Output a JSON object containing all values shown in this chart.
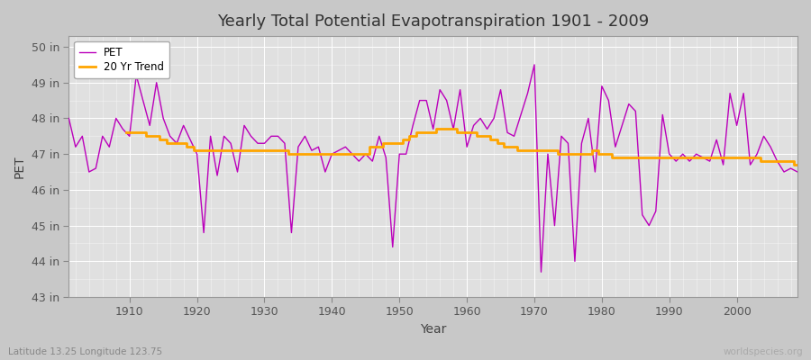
{
  "title": "Yearly Total Potential Evapotranspiration 1901 - 2009",
  "xlabel": "Year",
  "ylabel": "PET",
  "bottom_left_label": "Latitude 13.25 Longitude 123.75",
  "bottom_right_label": "worldspecies.org",
  "pet_color": "#bb00bb",
  "trend_color": "#ffa500",
  "fig_bg_color": "#c8c8c8",
  "plot_bg_color": "#e0e0e0",
  "ylim": [
    43,
    50.3
  ],
  "xlim": [
    1901,
    2009
  ],
  "yticks": [
    43,
    44,
    45,
    46,
    47,
    48,
    49,
    50
  ],
  "xticks": [
    1910,
    1920,
    1930,
    1940,
    1950,
    1960,
    1970,
    1980,
    1990,
    2000
  ],
  "pet_data": [
    48.0,
    47.2,
    47.5,
    46.5,
    46.6,
    47.5,
    47.2,
    48.0,
    47.7,
    47.5,
    49.2,
    48.5,
    47.8,
    49.0,
    48.0,
    47.5,
    47.3,
    47.8,
    47.4,
    47.0,
    44.8,
    47.5,
    46.4,
    47.5,
    47.3,
    46.5,
    47.8,
    47.5,
    47.3,
    47.3,
    47.5,
    47.5,
    47.3,
    44.8,
    47.2,
    47.5,
    47.1,
    47.2,
    46.5,
    47.0,
    47.1,
    47.2,
    47.0,
    46.8,
    47.0,
    46.8,
    47.5,
    46.9,
    44.4,
    47.0,
    47.0,
    47.8,
    48.5,
    48.5,
    47.7,
    48.8,
    48.5,
    47.7,
    48.8,
    47.2,
    47.8,
    48.0,
    47.7,
    48.0,
    48.8,
    47.6,
    47.5,
    48.1,
    48.7,
    49.5,
    43.7,
    47.0,
    45.0,
    47.5,
    47.3,
    44.0,
    47.3,
    48.0,
    46.5,
    48.9,
    48.5,
    47.2,
    47.8,
    48.4,
    48.2,
    45.3,
    45.0,
    45.4,
    48.1,
    47.0,
    46.8,
    47.0,
    46.8,
    47.0,
    46.9,
    46.8,
    47.4,
    46.7,
    48.7,
    47.8,
    48.7,
    46.7,
    47.0,
    47.5,
    47.2,
    46.8,
    46.5,
    46.6,
    46.5
  ],
  "trend_data": [
    null,
    null,
    null,
    null,
    null,
    null,
    null,
    null,
    null,
    47.6,
    47.6,
    47.6,
    47.5,
    47.5,
    47.4,
    47.3,
    47.3,
    47.3,
    47.2,
    47.1,
    47.1,
    47.1,
    47.1,
    47.1,
    47.1,
    47.1,
    47.1,
    47.1,
    47.1,
    47.1,
    47.1,
    47.1,
    47.1,
    47.0,
    47.0,
    47.0,
    47.0,
    47.0,
    47.0,
    47.0,
    47.0,
    47.0,
    47.0,
    47.0,
    47.0,
    47.2,
    47.2,
    47.3,
    47.3,
    47.3,
    47.4,
    47.5,
    47.6,
    47.6,
    47.6,
    47.7,
    47.7,
    47.7,
    47.6,
    47.6,
    47.6,
    47.5,
    47.5,
    47.4,
    47.3,
    47.2,
    47.2,
    47.1,
    47.1,
    47.1,
    47.1,
    47.1,
    47.1,
    47.0,
    47.0,
    47.0,
    47.0,
    47.0,
    47.1,
    47.0,
    47.0,
    46.9,
    46.9,
    46.9,
    46.9,
    46.9,
    46.9,
    46.9,
    46.9,
    46.9,
    46.9,
    46.9,
    46.9,
    46.9,
    46.9,
    46.9,
    46.9,
    46.9,
    46.9,
    46.9,
    46.9,
    46.9,
    46.9,
    46.8,
    46.8,
    46.8,
    46.8,
    46.8,
    46.7
  ]
}
